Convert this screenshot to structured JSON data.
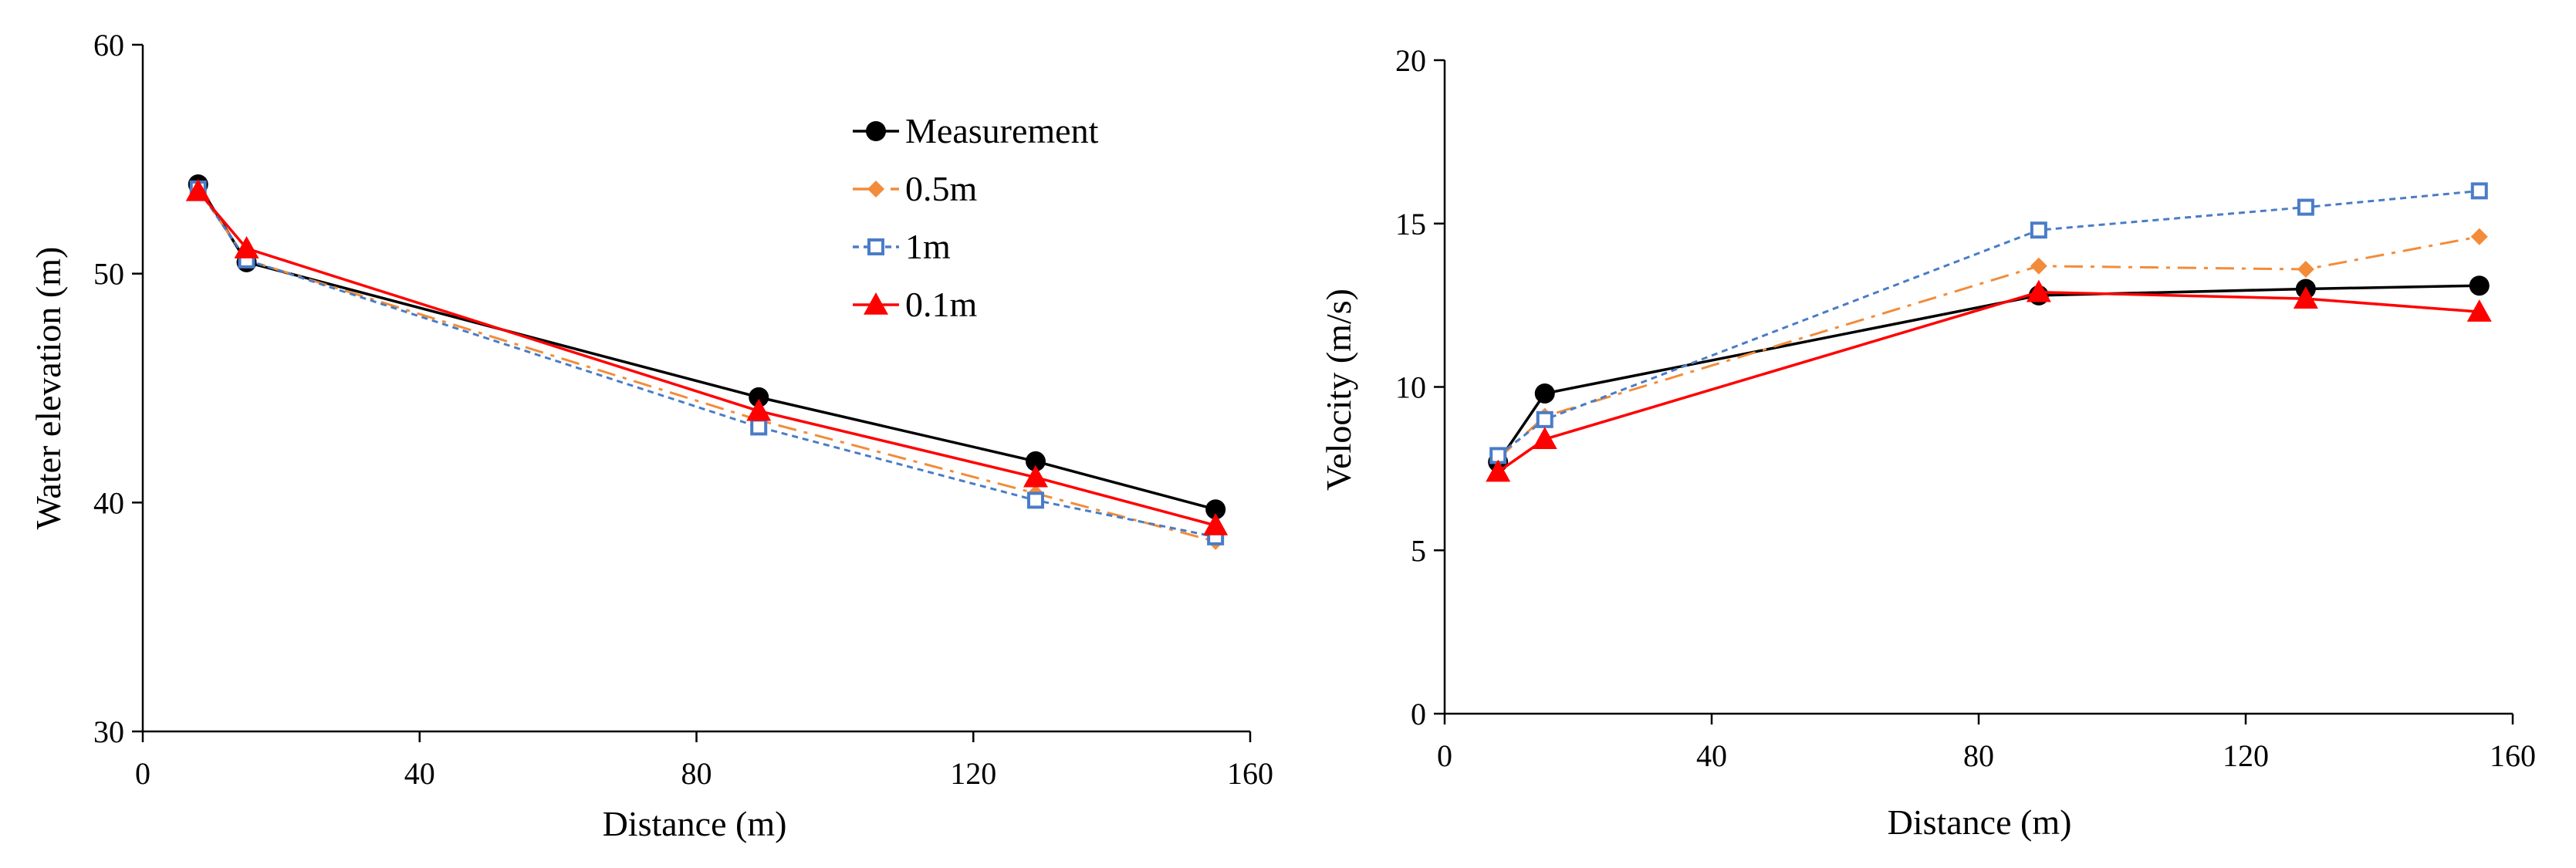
{
  "chart_data": [
    {
      "type": "line",
      "title": "",
      "xlabel": "Distance (m)",
      "ylabel": "Water elevation (m)",
      "xlim": [
        0,
        160
      ],
      "ylim": [
        30,
        60
      ],
      "xticks": [
        0,
        40,
        80,
        120,
        160
      ],
      "yticks": [
        30,
        40,
        50,
        60
      ],
      "grid": false,
      "legend_position": "top-right",
      "series": [
        {
          "name": "Measurement",
          "color": "#000000",
          "dash": "solid",
          "marker": "circle",
          "x": [
            8,
            15,
            89,
            129,
            155
          ],
          "y": [
            53.9,
            50.5,
            44.6,
            41.8,
            39.7
          ]
        },
        {
          "name": "0.5m",
          "color": "#F28C3A",
          "dash": "dashdot",
          "marker": "diamond",
          "x": [
            8,
            15,
            89,
            129,
            155
          ],
          "y": [
            53.7,
            50.6,
            43.6,
            40.4,
            38.3
          ]
        },
        {
          "name": "1m",
          "color": "#4A7CC7",
          "dash": "dotted",
          "marker": "square",
          "x": [
            8,
            15,
            89,
            129,
            155
          ],
          "y": [
            53.7,
            50.6,
            43.3,
            40.1,
            38.5
          ]
        },
        {
          "name": "0.1m",
          "color": "#FF0000",
          "dash": "solid",
          "marker": "triangle",
          "x": [
            8,
            15,
            89,
            129,
            155
          ],
          "y": [
            53.6,
            51.1,
            44.0,
            41.1,
            39.0
          ]
        }
      ]
    },
    {
      "type": "line",
      "title": "",
      "xlabel": "Distance (m)",
      "ylabel": "Velocity (m/s)",
      "xlim": [
        0,
        160
      ],
      "ylim": [
        0,
        20
      ],
      "xticks": [
        0,
        40,
        80,
        120,
        160
      ],
      "yticks": [
        0,
        5,
        10,
        15,
        20
      ],
      "grid": false,
      "legend_position": "none",
      "series": [
        {
          "name": "Measurement",
          "color": "#000000",
          "dash": "solid",
          "marker": "circle",
          "x": [
            8,
            15,
            89,
            129,
            155
          ],
          "y": [
            7.7,
            9.8,
            12.8,
            13.0,
            13.1
          ]
        },
        {
          "name": "0.5m",
          "color": "#F28C3A",
          "dash": "dashdot",
          "marker": "diamond",
          "x": [
            8,
            15,
            89,
            129,
            155
          ],
          "y": [
            7.8,
            9.1,
            13.7,
            13.6,
            14.6
          ]
        },
        {
          "name": "1m",
          "color": "#4A7CC7",
          "dash": "dotted",
          "marker": "square",
          "x": [
            8,
            15,
            89,
            129,
            155
          ],
          "y": [
            7.9,
            9.0,
            14.8,
            15.5,
            16.0
          ]
        },
        {
          "name": "0.1m",
          "color": "#FF0000",
          "dash": "solid",
          "marker": "triangle",
          "x": [
            8,
            15,
            89,
            129,
            155
          ],
          "y": [
            7.4,
            8.4,
            12.9,
            12.7,
            12.3
          ]
        }
      ]
    }
  ]
}
